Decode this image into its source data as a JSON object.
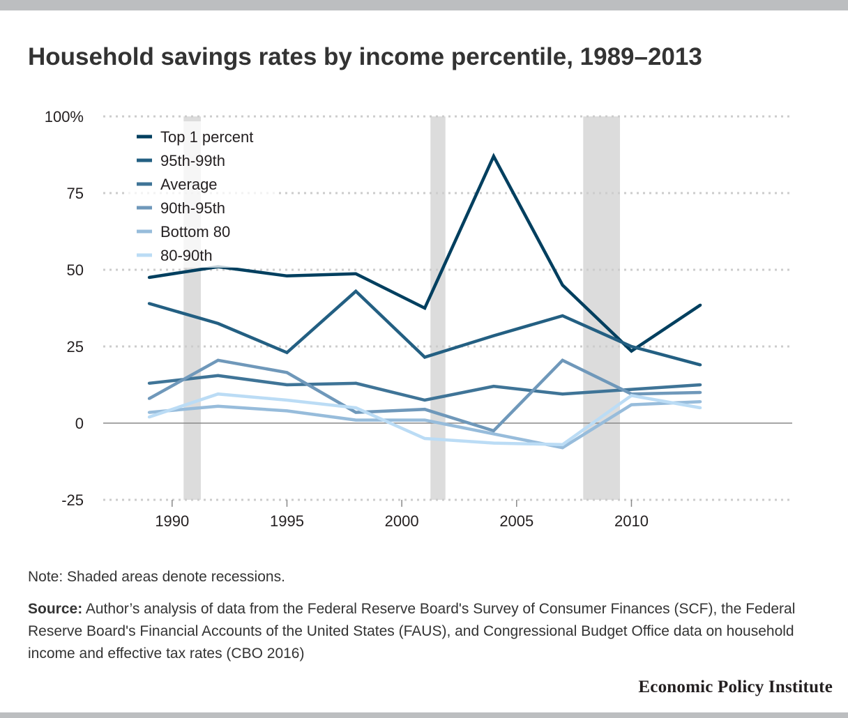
{
  "title": "Household savings rates by income percentile, 1989–2013",
  "note": "Note: Shaded areas denote recessions.",
  "source_label": "Source:",
  "source_text": "Author’s analysis of data from the Federal Reserve Board's Survey of Consumer Finances (SCF), the Federal Reserve Board's Financial Accounts of the United States (FAUS), and Congressional Budget Office data on household income and effective tax rates (CBO 2016)",
  "brand": "Economic Policy Institute",
  "colors": {
    "gridline": "#cccccc",
    "zero_line": "#888888",
    "recession": "#dcdcdc"
  },
  "chart_data": {
    "type": "line",
    "title": "Household savings rates by income percentile, 1989–2013",
    "xlabel": "",
    "ylabel": "",
    "xlim": [
      1987,
      2017
    ],
    "ylim": [
      -25,
      100
    ],
    "yticks": [
      100,
      75,
      50,
      25,
      0,
      -25
    ],
    "ytick_labels": [
      "100%",
      "75",
      "50",
      "25",
      "0",
      "-25"
    ],
    "xticks": [
      1990,
      1995,
      2000,
      2005,
      2010
    ],
    "xtick_labels": [
      "1990",
      "1995",
      "2000",
      "2005",
      "2010"
    ],
    "grid": true,
    "legend_position": "top-left",
    "recessions": [
      [
        1990.5,
        1991.25
      ],
      [
        2001.25,
        2001.9
      ],
      [
        2007.9,
        2009.5
      ]
    ],
    "x": [
      1989,
      1992,
      1995,
      1998,
      2001,
      2004,
      2007,
      2010,
      2013
    ],
    "series": [
      {
        "name": "Top 1 percent",
        "color": "#003f5f",
        "values": [
          47.5,
          51.0,
          48.0,
          48.7,
          37.5,
          87.0,
          45.0,
          23.5,
          38.5
        ]
      },
      {
        "name": "95th-99th",
        "color": "#235f82",
        "values": [
          39.0,
          32.5,
          23.0,
          43.0,
          21.5,
          28.5,
          35.0,
          25.0,
          19.0
        ]
      },
      {
        "name": "Average",
        "color": "#3f7497",
        "values": [
          13.0,
          15.5,
          12.5,
          13.0,
          7.5,
          12.0,
          9.5,
          11.0,
          12.5
        ]
      },
      {
        "name": "90th-95th",
        "color": "#6f98ba",
        "values": [
          8.0,
          20.5,
          16.5,
          3.5,
          4.5,
          -2.5,
          20.5,
          9.5,
          10.0
        ]
      },
      {
        "name": "Bottom 80",
        "color": "#97bcdb",
        "values": [
          3.5,
          5.5,
          4.0,
          1.0,
          1.0,
          -3.5,
          -8.0,
          6.0,
          7.0
        ]
      },
      {
        "name": "80-90th",
        "color": "#bbdcf5",
        "values": [
          2.0,
          9.5,
          7.5,
          5.0,
          -5.0,
          -6.5,
          -7.0,
          9.0,
          5.0
        ]
      }
    ]
  }
}
